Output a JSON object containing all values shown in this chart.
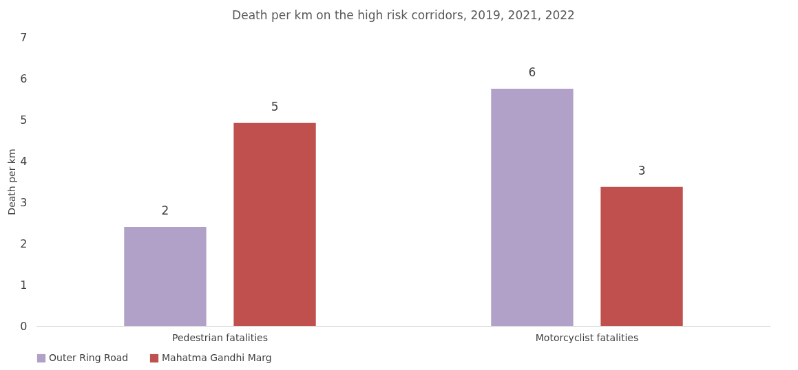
{
  "chart_data": {
    "type": "bar",
    "title": "Death per km on the high risk corridors, 2019, 2021, 2022",
    "ylabel": "Death per km",
    "categories": [
      "Pedestrian fatalities",
      "Motorcyclist fatalities"
    ],
    "series": [
      {
        "name": "Outer Ring Road",
        "color": "#b1a0c7",
        "values": [
          2.4,
          5.75
        ],
        "value_labels": [
          "2",
          "6"
        ]
      },
      {
        "name": "Mahatma Gandhi Marg",
        "color": "#c0504d",
        "values": [
          4.92,
          3.37
        ],
        "value_labels": [
          "5",
          "3"
        ]
      }
    ],
    "ylim": [
      0,
      7
    ],
    "yticks": [
      0,
      1,
      2,
      3,
      4,
      5,
      6,
      7
    ],
    "grid": false,
    "legend": "bottom"
  }
}
